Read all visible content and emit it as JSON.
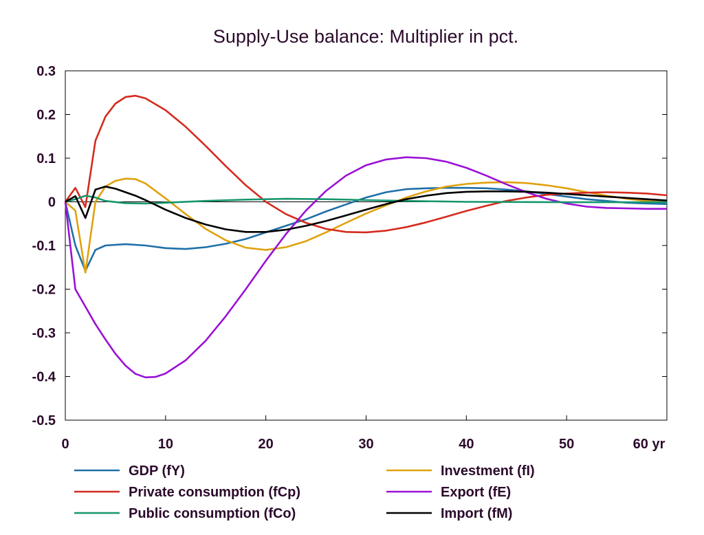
{
  "chart_data": {
    "type": "line",
    "title": "Supply-Use balance: Multiplier in pct.",
    "xlabel": "",
    "ylabel": "",
    "x_unit_label": "yr",
    "xlim": [
      0,
      60
    ],
    "ylim": [
      -0.5,
      0.3
    ],
    "x_ticks": [
      0,
      10,
      20,
      30,
      40,
      50,
      60
    ],
    "x_tick_labels": [
      "0",
      "10",
      "20",
      "30",
      "40",
      "50",
      "60 yr"
    ],
    "y_ticks": [
      -0.5,
      -0.4,
      -0.3,
      -0.2,
      -0.1,
      0,
      0.1,
      0.2,
      0.3
    ],
    "y_tick_labels": [
      "-0.5",
      "-0.4",
      "-0.3",
      "-0.2",
      "-0.1",
      "0",
      "0.1",
      "0.2",
      "0.3"
    ],
    "grid": false,
    "zero_line": true,
    "legend_position": "bottom",
    "series": [
      {
        "name": "GDP (fY)",
        "color": "#1f6fa8",
        "points": [
          [
            0,
            0
          ],
          [
            1,
            -0.1
          ],
          [
            2,
            -0.158
          ],
          [
            3,
            -0.11
          ],
          [
            4,
            -0.1
          ],
          [
            6,
            -0.097
          ],
          [
            8,
            -0.1
          ],
          [
            10,
            -0.106
          ],
          [
            12,
            -0.108
          ],
          [
            14,
            -0.104
          ],
          [
            16,
            -0.096
          ],
          [
            18,
            -0.085
          ],
          [
            20,
            -0.07
          ],
          [
            22,
            -0.055
          ],
          [
            24,
            -0.04
          ],
          [
            26,
            -0.022
          ],
          [
            28,
            -0.006
          ],
          [
            30,
            0.01
          ],
          [
            32,
            0.022
          ],
          [
            34,
            0.029
          ],
          [
            36,
            0.031
          ],
          [
            38,
            0.032
          ],
          [
            40,
            0.032
          ],
          [
            42,
            0.031
          ],
          [
            44,
            0.028
          ],
          [
            46,
            0.024
          ],
          [
            48,
            0.018
          ],
          [
            50,
            0.012
          ],
          [
            52,
            0.006
          ],
          [
            54,
            0.002
          ],
          [
            56,
            -0.002
          ],
          [
            58,
            -0.004
          ],
          [
            60,
            -0.005
          ]
        ]
      },
      {
        "name": "Investment (fI)",
        "color": "#e0a10e",
        "points": [
          [
            0,
            0
          ],
          [
            1,
            -0.02
          ],
          [
            2,
            -0.162
          ],
          [
            3,
            0.0
          ],
          [
            4,
            0.035
          ],
          [
            5,
            0.048
          ],
          [
            6,
            0.053
          ],
          [
            7,
            0.052
          ],
          [
            8,
            0.042
          ],
          [
            10,
            0.008
          ],
          [
            12,
            -0.028
          ],
          [
            14,
            -0.062
          ],
          [
            16,
            -0.088
          ],
          [
            18,
            -0.105
          ],
          [
            20,
            -0.11
          ],
          [
            22,
            -0.104
          ],
          [
            24,
            -0.09
          ],
          [
            26,
            -0.07
          ],
          [
            28,
            -0.048
          ],
          [
            30,
            -0.027
          ],
          [
            32,
            -0.008
          ],
          [
            34,
            0.01
          ],
          [
            36,
            0.024
          ],
          [
            38,
            0.035
          ],
          [
            40,
            0.041
          ],
          [
            42,
            0.044
          ],
          [
            44,
            0.045
          ],
          [
            46,
            0.043
          ],
          [
            48,
            0.038
          ],
          [
            50,
            0.031
          ],
          [
            52,
            0.022
          ],
          [
            54,
            0.014
          ],
          [
            56,
            0.007
          ],
          [
            58,
            0.002
          ],
          [
            60,
            -0.001
          ]
        ]
      },
      {
        "name": "Private consumption (fCp)",
        "color": "#d42b1e",
        "points": [
          [
            0,
            0
          ],
          [
            1,
            0.032
          ],
          [
            2,
            -0.012
          ],
          [
            3,
            0.14
          ],
          [
            4,
            0.195
          ],
          [
            5,
            0.225
          ],
          [
            6,
            0.24
          ],
          [
            7,
            0.243
          ],
          [
            8,
            0.237
          ],
          [
            10,
            0.21
          ],
          [
            12,
            0.172
          ],
          [
            14,
            0.128
          ],
          [
            16,
            0.082
          ],
          [
            18,
            0.038
          ],
          [
            20,
            0.0
          ],
          [
            22,
            -0.028
          ],
          [
            24,
            -0.048
          ],
          [
            26,
            -0.062
          ],
          [
            28,
            -0.069
          ],
          [
            30,
            -0.07
          ],
          [
            32,
            -0.066
          ],
          [
            34,
            -0.058
          ],
          [
            36,
            -0.047
          ],
          [
            38,
            -0.034
          ],
          [
            40,
            -0.021
          ],
          [
            42,
            -0.009
          ],
          [
            44,
            0.002
          ],
          [
            46,
            0.01
          ],
          [
            48,
            0.016
          ],
          [
            50,
            0.019
          ],
          [
            52,
            0.021
          ],
          [
            54,
            0.022
          ],
          [
            56,
            0.021
          ],
          [
            58,
            0.019
          ],
          [
            60,
            0.015
          ]
        ]
      },
      {
        "name": "Export (fE)",
        "color": "#9a10d6",
        "points": [
          [
            0,
            0
          ],
          [
            1,
            -0.2
          ],
          [
            2,
            -0.24
          ],
          [
            3,
            -0.28
          ],
          [
            4,
            -0.315
          ],
          [
            5,
            -0.348
          ],
          [
            6,
            -0.375
          ],
          [
            7,
            -0.394
          ],
          [
            8,
            -0.402
          ],
          [
            9,
            -0.401
          ],
          [
            10,
            -0.393
          ],
          [
            12,
            -0.363
          ],
          [
            14,
            -0.318
          ],
          [
            16,
            -0.262
          ],
          [
            18,
            -0.2
          ],
          [
            20,
            -0.135
          ],
          [
            22,
            -0.074
          ],
          [
            24,
            -0.02
          ],
          [
            26,
            0.025
          ],
          [
            28,
            0.06
          ],
          [
            30,
            0.084
          ],
          [
            32,
            0.097
          ],
          [
            34,
            0.102
          ],
          [
            36,
            0.1
          ],
          [
            38,
            0.092
          ],
          [
            40,
            0.078
          ],
          [
            42,
            0.06
          ],
          [
            44,
            0.04
          ],
          [
            46,
            0.022
          ],
          [
            48,
            0.007
          ],
          [
            50,
            -0.004
          ],
          [
            52,
            -0.011
          ],
          [
            54,
            -0.014
          ],
          [
            56,
            -0.015
          ],
          [
            58,
            -0.016
          ],
          [
            60,
            -0.016
          ]
        ]
      },
      {
        "name": "Public consumption (fCo)",
        "color": "#16966e",
        "points": [
          [
            0,
            0
          ],
          [
            1,
            0.006
          ],
          [
            2,
            0.014
          ],
          [
            3,
            0.01
          ],
          [
            4,
            0.002
          ],
          [
            6,
            -0.003
          ],
          [
            8,
            -0.004
          ],
          [
            10,
            -0.002
          ],
          [
            14,
            0.002
          ],
          [
            18,
            0.005
          ],
          [
            22,
            0.007
          ],
          [
            26,
            0.006
          ],
          [
            30,
            0.004
          ],
          [
            34,
            0.002
          ],
          [
            40,
            0.0
          ],
          [
            50,
            -0.001
          ],
          [
            60,
            -0.001
          ]
        ]
      },
      {
        "name": "Import (fM)",
        "color": "#000000",
        "points": [
          [
            0,
            0
          ],
          [
            1,
            0.013
          ],
          [
            2,
            -0.037
          ],
          [
            3,
            0.028
          ],
          [
            4,
            0.035
          ],
          [
            5,
            0.03
          ],
          [
            6,
            0.022
          ],
          [
            7,
            0.014
          ],
          [
            8,
            0.004
          ],
          [
            10,
            -0.018
          ],
          [
            12,
            -0.037
          ],
          [
            14,
            -0.052
          ],
          [
            16,
            -0.063
          ],
          [
            18,
            -0.069
          ],
          [
            20,
            -0.069
          ],
          [
            22,
            -0.064
          ],
          [
            24,
            -0.055
          ],
          [
            26,
            -0.044
          ],
          [
            28,
            -0.031
          ],
          [
            30,
            -0.018
          ],
          [
            32,
            -0.005
          ],
          [
            34,
            0.006
          ],
          [
            36,
            0.014
          ],
          [
            38,
            0.02
          ],
          [
            40,
            0.023
          ],
          [
            42,
            0.024
          ],
          [
            44,
            0.024
          ],
          [
            46,
            0.023
          ],
          [
            48,
            0.021
          ],
          [
            50,
            0.018
          ],
          [
            52,
            0.015
          ],
          [
            54,
            0.012
          ],
          [
            56,
            0.009
          ],
          [
            58,
            0.006
          ],
          [
            60,
            0.003
          ]
        ]
      }
    ]
  }
}
